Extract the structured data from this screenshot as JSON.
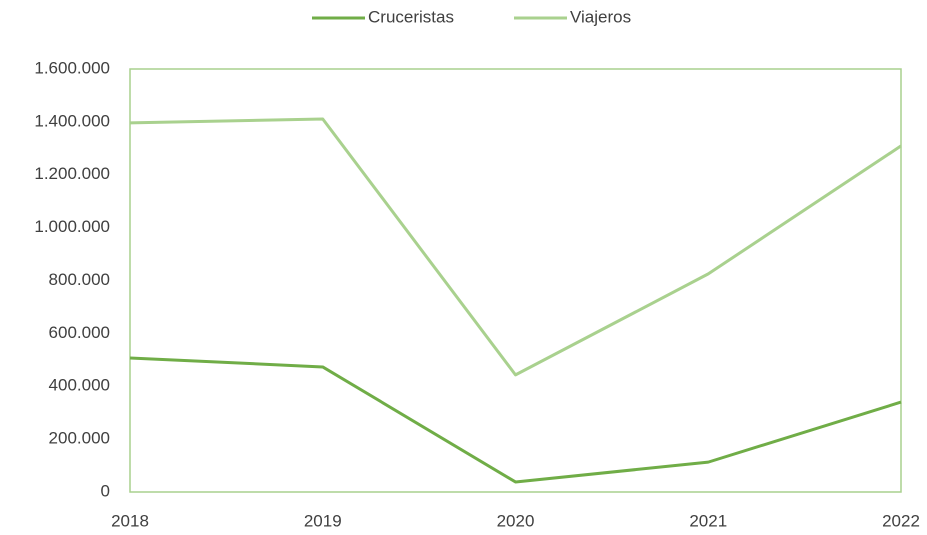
{
  "chart_data": {
    "type": "line",
    "x": [
      2018,
      2019,
      2020,
      2021,
      2022
    ],
    "xlim": [
      2018,
      2022
    ],
    "xticks": [
      2018,
      2019,
      2020,
      2021,
      2022
    ],
    "ylim": [
      0,
      1600000
    ],
    "yticks": [
      0,
      {
        "value": 200000,
        "label": "200.000"
      },
      {
        "value": 400000,
        "label": "400.000"
      },
      {
        "value": 600000,
        "label": "600.000"
      },
      {
        "value": 800000,
        "label": "800.000"
      },
      {
        "value": 1000000,
        "label": "1.000.000"
      },
      {
        "value": 1200000,
        "label": "1.200.000"
      },
      {
        "value": 1400000,
        "label": "1.400.000"
      },
      {
        "value": 1600000,
        "label": "1.600.000"
      }
    ],
    "grid": false,
    "legend": "top",
    "series": [
      {
        "name": "Cruceristas",
        "color": "#70ad47",
        "values": [
          507000,
          473000,
          38000,
          113000,
          340000
        ]
      },
      {
        "name": "Viajeros",
        "color": "#a9d18e",
        "values": [
          1396000,
          1411000,
          443000,
          825000,
          1309000
        ]
      }
    ]
  }
}
